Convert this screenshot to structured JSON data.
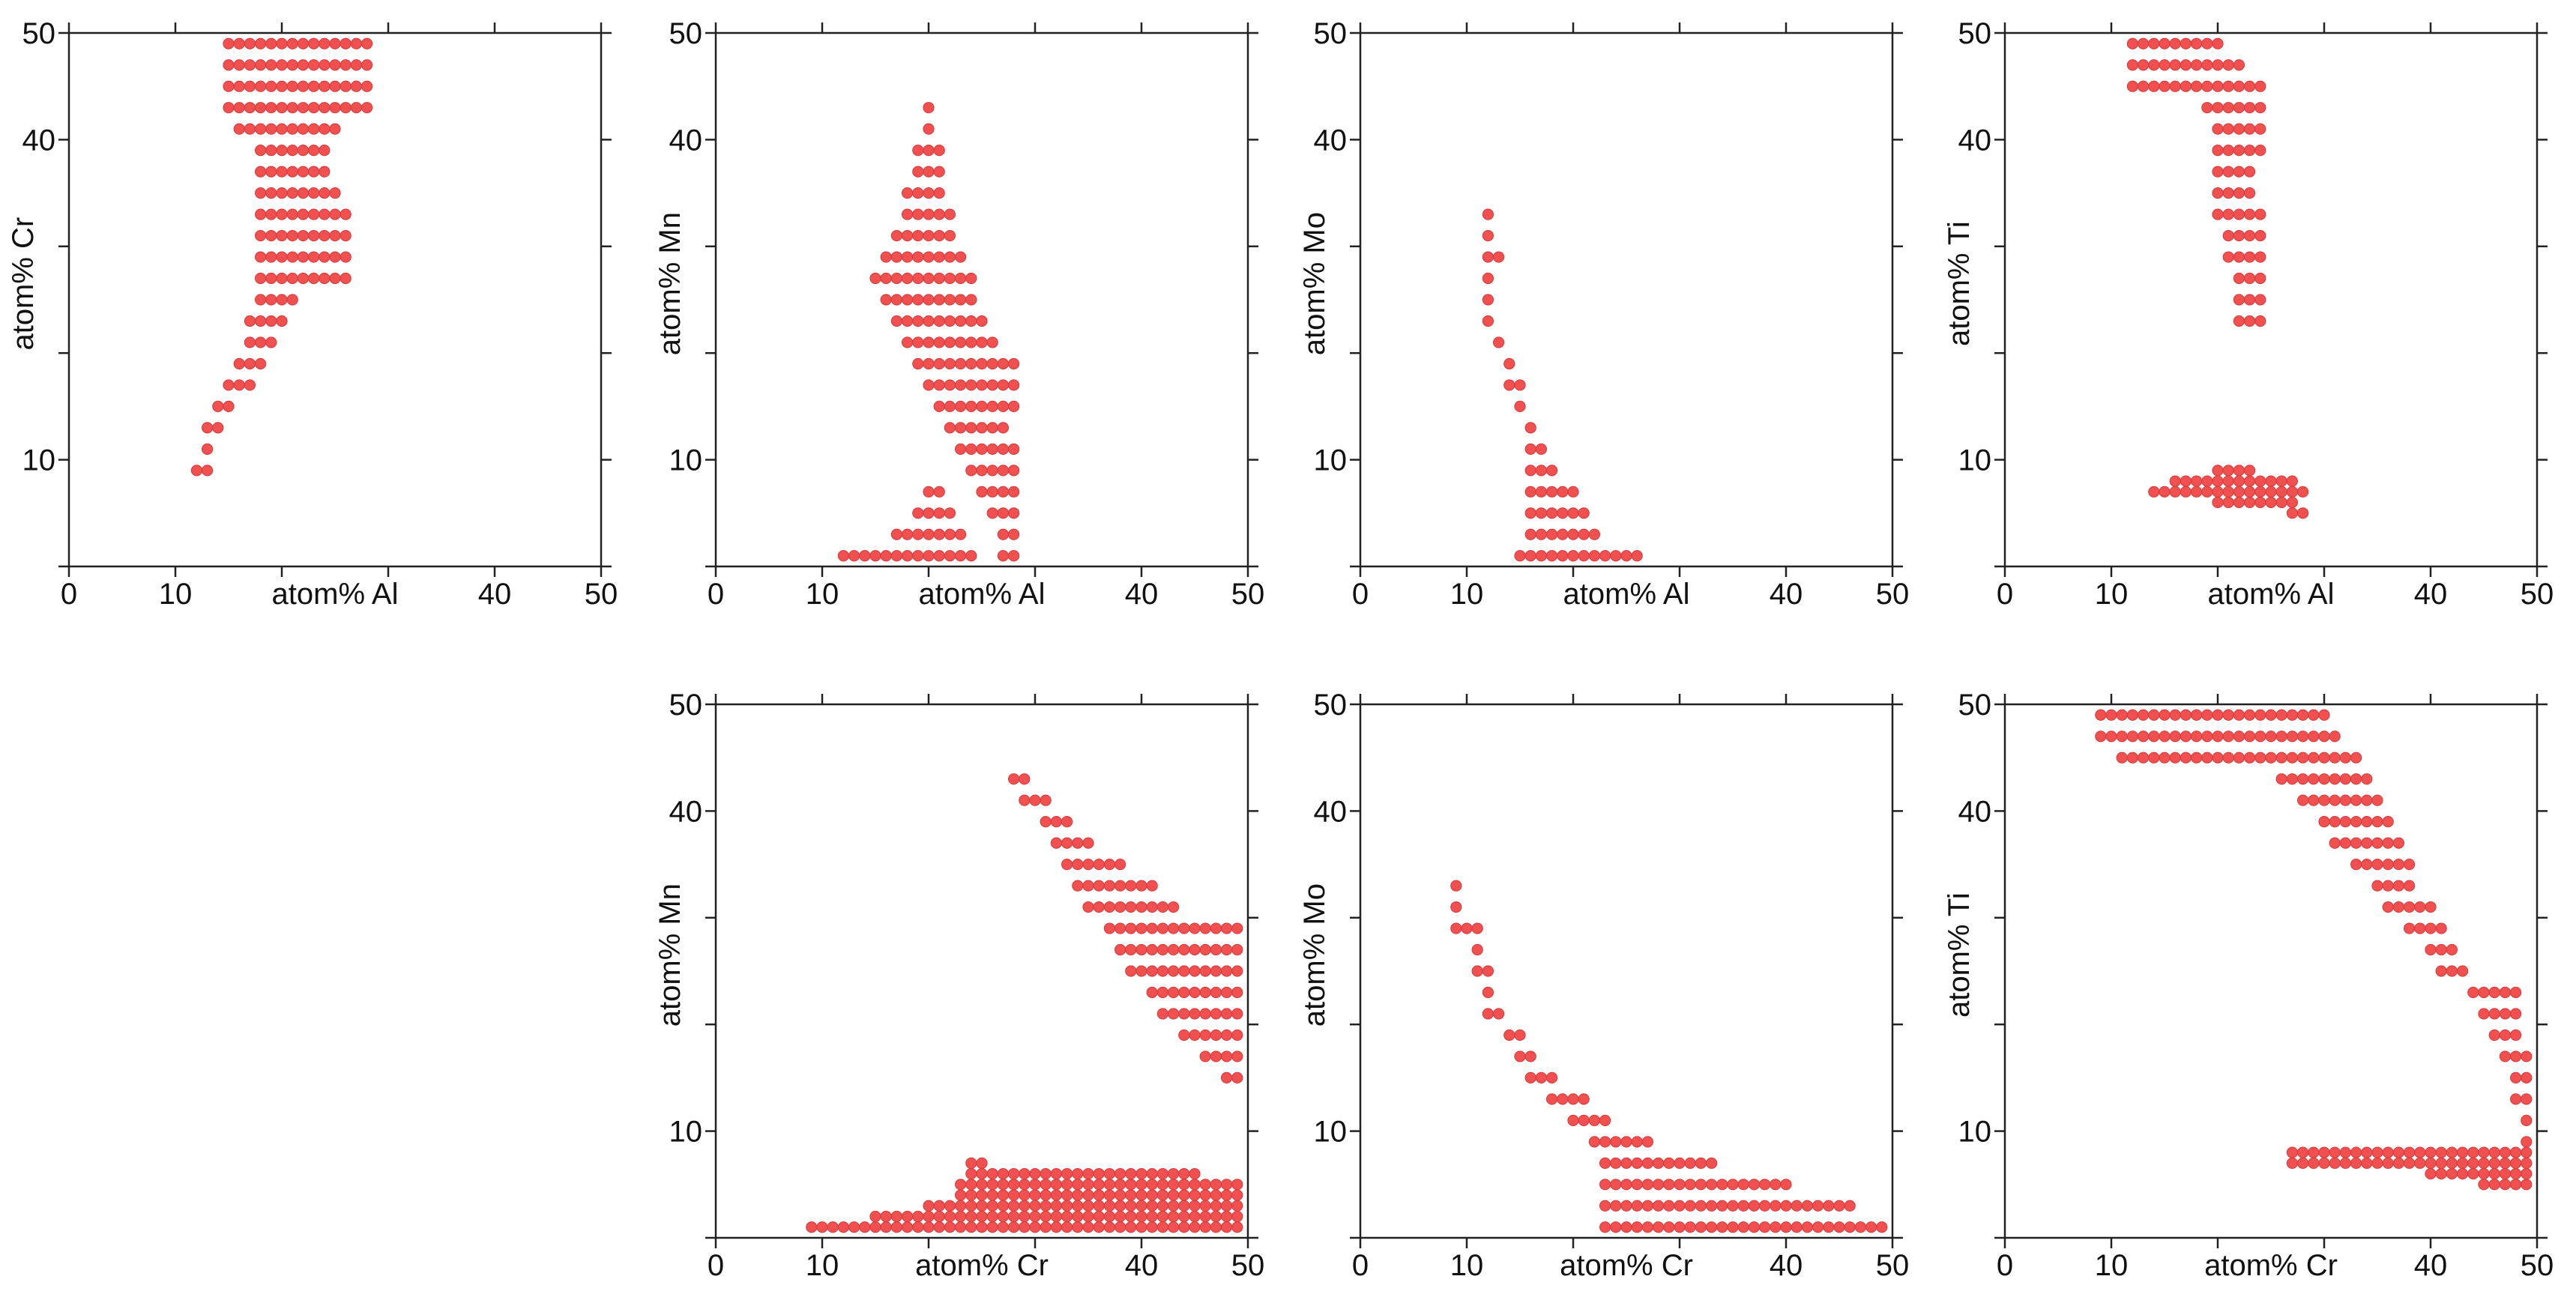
{
  "figure": {
    "marker_color": "#f05050",
    "marker_edge": "#d63a3a",
    "axis_color": "#222222",
    "tick_values": [
      0,
      10,
      20,
      30,
      40,
      50
    ],
    "x_tick_labels": [
      "0",
      "10",
      "",
      "",
      "40",
      "50"
    ],
    "y_tick_labels": [
      "",
      "10",
      "",
      "",
      "40",
      "50"
    ]
  },
  "chart_data": [
    {
      "type": "scatter",
      "title": "",
      "xlabel": "atom% Al",
      "ylabel": "atom% Cr",
      "xlim": [
        0,
        50
      ],
      "ylim": [
        0,
        50
      ],
      "grid": false,
      "regions": [
        {
          "rows": [
            [
              49,
              15,
              28
            ],
            [
              47,
              15,
              28
            ],
            [
              45,
              15,
              28
            ],
            [
              43,
              15,
              28
            ],
            [
              41,
              16,
              25
            ],
            [
              39,
              18,
              24
            ],
            [
              37,
              18,
              24
            ],
            [
              35,
              18,
              25
            ],
            [
              33,
              18,
              26
            ],
            [
              31,
              18,
              26
            ],
            [
              29,
              18,
              26
            ],
            [
              27,
              18,
              26
            ],
            [
              25,
              18,
              21
            ],
            [
              23,
              17,
              20
            ],
            [
              21,
              17,
              19
            ],
            [
              19,
              16,
              18
            ],
            [
              17,
              15,
              17
            ],
            [
              15,
              14,
              15
            ],
            [
              13,
              13,
              14
            ],
            [
              11,
              12.5,
              13.5
            ],
            [
              9,
              12,
              13
            ]
          ]
        }
      ]
    },
    {
      "type": "scatter",
      "title": "",
      "xlabel": "atom% Al",
      "ylabel": "atom% Mn",
      "xlim": [
        0,
        50
      ],
      "ylim": [
        0,
        50
      ],
      "grid": false,
      "regions": [
        {
          "rows": [
            [
              43,
              20,
              20
            ],
            [
              41,
              20,
              20
            ],
            [
              39,
              19,
              21
            ],
            [
              37,
              19,
              21
            ],
            [
              35,
              18,
              21
            ],
            [
              33,
              18,
              22
            ],
            [
              31,
              17,
              22
            ],
            [
              29,
              16,
              23
            ],
            [
              27,
              15,
              24
            ],
            [
              25,
              16,
              24
            ],
            [
              23,
              17,
              25
            ],
            [
              21,
              18,
              26
            ],
            [
              19,
              19,
              28
            ],
            [
              17,
              20,
              28
            ],
            [
              15,
              21,
              28
            ],
            [
              13,
              22,
              27
            ],
            [
              11,
              23,
              28
            ],
            [
              9,
              24,
              28
            ],
            [
              7,
              25,
              28
            ],
            [
              5,
              26,
              28
            ],
            [
              3,
              27,
              28
            ],
            [
              1,
              27,
              28
            ]
          ]
        },
        {
          "rows": [
            [
              7,
              20,
              21
            ],
            [
              5,
              19,
              22
            ],
            [
              3,
              17,
              23
            ],
            [
              1,
              12,
              24
            ]
          ]
        }
      ]
    },
    {
      "type": "scatter",
      "title": "",
      "xlabel": "atom% Al",
      "ylabel": "atom% Mo",
      "xlim": [
        0,
        50
      ],
      "ylim": [
        0,
        50
      ],
      "grid": false,
      "regions": [
        {
          "rows": [
            [
              33,
              12,
              12
            ],
            [
              31,
              12,
              12
            ],
            [
              29,
              11.5,
              13
            ],
            [
              27,
              12,
              12
            ],
            [
              25,
              12,
              12
            ],
            [
              23,
              12,
              12
            ],
            [
              21,
              13,
              13
            ],
            [
              19,
              14,
              14
            ],
            [
              17,
              14,
              15
            ],
            [
              15,
              15,
              15
            ],
            [
              13,
              16,
              16
            ],
            [
              11,
              16,
              17
            ],
            [
              9,
              16,
              18
            ],
            [
              7,
              16,
              20
            ],
            [
              5,
              16,
              21
            ],
            [
              3,
              16,
              22
            ],
            [
              1,
              15,
              26
            ]
          ]
        }
      ]
    },
    {
      "type": "scatter",
      "title": "",
      "xlabel": "atom% Al",
      "ylabel": "atom% Ti",
      "xlim": [
        0,
        50
      ],
      "ylim": [
        0,
        50
      ],
      "grid": false,
      "regions": [
        {
          "rows": [
            [
              49,
              12,
              20
            ],
            [
              47,
              12,
              22
            ],
            [
              45,
              12,
              24
            ],
            [
              43,
              19,
              24
            ],
            [
              41,
              20,
              24
            ],
            [
              39,
              20,
              24
            ],
            [
              37,
              20,
              23
            ],
            [
              35,
              20,
              23
            ],
            [
              33,
              20,
              24
            ],
            [
              31,
              21,
              24
            ],
            [
              29,
              21,
              24
            ],
            [
              27,
              22,
              24
            ],
            [
              25,
              22,
              24
            ],
            [
              23,
              22,
              24
            ]
          ]
        },
        {
          "rows": [
            [
              9,
              20,
              23
            ],
            [
              8,
              16,
              27
            ],
            [
              7,
              14,
              28
            ],
            [
              6,
              20,
              27
            ],
            [
              5,
              27,
              28
            ]
          ]
        }
      ]
    },
    null,
    {
      "type": "scatter",
      "title": "",
      "xlabel": "atom% Cr",
      "ylabel": "atom% Mn",
      "xlim": [
        0,
        50
      ],
      "ylim": [
        0,
        50
      ],
      "grid": false,
      "regions": [
        {
          "rows": [
            [
              43,
              28,
              29
            ],
            [
              41,
              29,
              31
            ],
            [
              39,
              31,
              33
            ],
            [
              37,
              32,
              35
            ],
            [
              35,
              33,
              38
            ],
            [
              33,
              34,
              41
            ],
            [
              31,
              35,
              43
            ],
            [
              29,
              37,
              49
            ],
            [
              27,
              38,
              49
            ],
            [
              25,
              39,
              49
            ],
            [
              23,
              41,
              49
            ],
            [
              21,
              42,
              49
            ],
            [
              19,
              44,
              49
            ],
            [
              17,
              46,
              49
            ],
            [
              15,
              48,
              49
            ]
          ]
        },
        {
          "rows": [
            [
              7,
              24,
              25
            ],
            [
              6,
              24,
              45
            ],
            [
              5,
              23,
              49
            ],
            [
              4,
              23,
              49
            ],
            [
              3,
              20,
              49
            ],
            [
              2,
              15,
              49
            ],
            [
              1,
              9,
              49
            ]
          ]
        }
      ]
    },
    {
      "type": "scatter",
      "title": "",
      "xlabel": "atom% Cr",
      "ylabel": "atom% Mo",
      "xlim": [
        0,
        50
      ],
      "ylim": [
        0,
        50
      ],
      "grid": false,
      "regions": [
        {
          "rows": [
            [
              33,
              9,
              9
            ],
            [
              31,
              9,
              9
            ],
            [
              29,
              9,
              11
            ],
            [
              27,
              11,
              11
            ],
            [
              25,
              11,
              12
            ],
            [
              23,
              12,
              12
            ],
            [
              21,
              12,
              13
            ],
            [
              19,
              14,
              15
            ],
            [
              17,
              15,
              16
            ],
            [
              15,
              16,
              18
            ],
            [
              13,
              18,
              21
            ],
            [
              11,
              20,
              23
            ],
            [
              9,
              22,
              27
            ],
            [
              7,
              23,
              33
            ],
            [
              5,
              23,
              40
            ],
            [
              3,
              23,
              46
            ],
            [
              1,
              23,
              49
            ]
          ]
        }
      ]
    },
    {
      "type": "scatter",
      "title": "",
      "xlabel": "atom% Cr",
      "ylabel": "atom% Ti",
      "xlim": [
        0,
        50
      ],
      "ylim": [
        0,
        50
      ],
      "grid": false,
      "regions": [
        {
          "rows": [
            [
              49,
              9,
              30
            ],
            [
              47,
              9,
              31
            ],
            [
              45,
              11,
              33
            ],
            [
              43,
              26,
              34
            ],
            [
              41,
              28,
              35
            ],
            [
              39,
              30,
              36
            ],
            [
              37,
              31,
              37
            ],
            [
              35,
              33,
              38
            ],
            [
              33,
              35,
              38
            ],
            [
              31,
              36,
              40
            ],
            [
              29,
              38,
              41
            ],
            [
              27,
              40,
              42
            ],
            [
              25,
              41,
              43
            ],
            [
              23,
              44,
              48
            ],
            [
              21,
              45,
              48
            ],
            [
              19,
              46,
              48
            ],
            [
              17,
              47,
              49
            ],
            [
              15,
              48,
              49
            ],
            [
              13,
              48,
              49
            ],
            [
              11,
              49,
              49
            ]
          ]
        },
        {
          "rows": [
            [
              9,
              49,
              49
            ],
            [
              8,
              27,
              49
            ],
            [
              7,
              27,
              49
            ],
            [
              6,
              40,
              49
            ],
            [
              5,
              45,
              49
            ]
          ]
        }
      ]
    }
  ]
}
